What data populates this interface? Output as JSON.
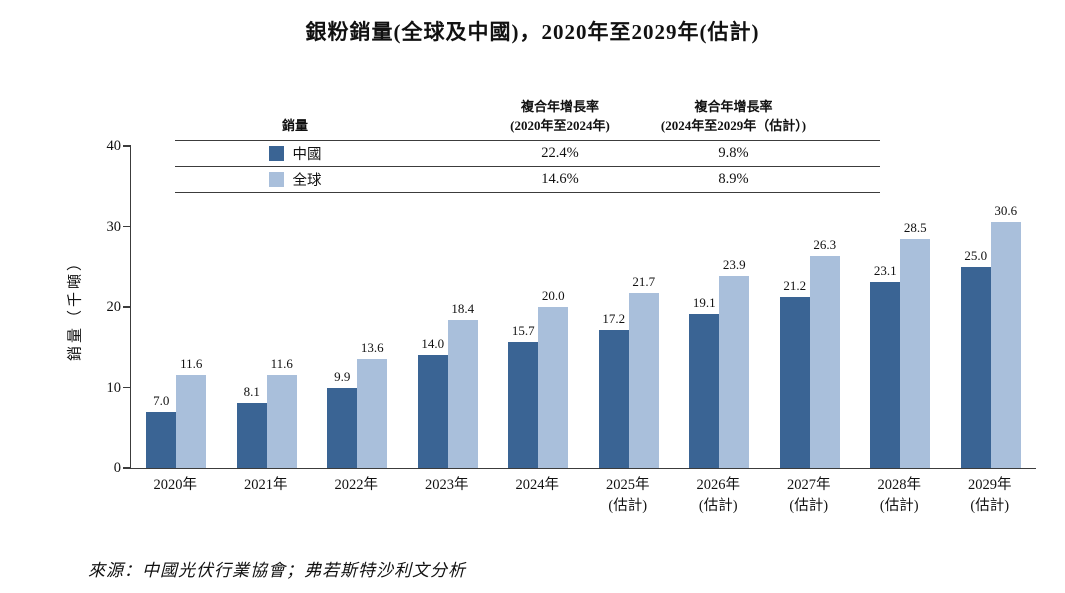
{
  "title": "銀粉銷量(全球及中國)，2020年至2029年(估計)",
  "source": "來源：中國光伏行業協會；弗若斯特沙利文分析",
  "legend_table": {
    "header": {
      "sales": "銷量",
      "cagr_2020_2024": "複合年增長率\n(2020年至2024年)",
      "cagr_2024_2029": "複合年增長率\n(2024年至2029年（估計）)"
    },
    "rows": [
      {
        "label": "中國",
        "cagr_2020_2024": "22.4%",
        "cagr_2024_2029": "9.8%",
        "color": "#3a6494"
      },
      {
        "label": "全球",
        "cagr_2020_2024": "14.6%",
        "cagr_2024_2029": "8.9%",
        "color": "#a9bfdb"
      }
    ]
  },
  "chart_data": {
    "type": "bar",
    "categories": [
      "2020年",
      "2021年",
      "2022年",
      "2023年",
      "2024年",
      "2025年\n(估計)",
      "2026年\n(估計)",
      "2027年\n(估計)",
      "2028年\n(估計)",
      "2029年\n(估計)"
    ],
    "series": [
      {
        "name": "中國",
        "color": "#3a6494",
        "values": [
          7.0,
          8.1,
          9.9,
          14.0,
          15.7,
          17.2,
          19.1,
          21.2,
          23.1,
          25.0
        ]
      },
      {
        "name": "全球",
        "color": "#a9bfdb",
        "values": [
          11.6,
          11.6,
          13.6,
          18.4,
          20.0,
          21.7,
          23.9,
          26.3,
          28.5,
          30.6
        ]
      }
    ],
    "title": "銀粉銷量(全球及中國)，2020年至2029年(估計)",
    "xlabel": "",
    "ylabel": "銷量（千噸）",
    "ylim": [
      0,
      40
    ],
    "yticks": [
      0,
      10,
      20,
      30,
      40
    ],
    "grid": false,
    "legend_position": "top-table"
  }
}
